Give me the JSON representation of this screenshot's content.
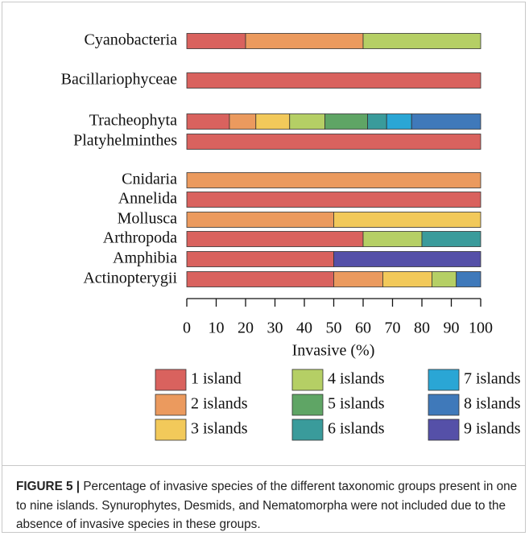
{
  "chart_data": {
    "type": "stacked-barh",
    "xlabel": "Invasive (%)",
    "categories": [
      "Cyanobacteria",
      "Bacillariophyceae",
      "Tracheophyta",
      "Platyhelminthes",
      "Cnidaria",
      "Annelida",
      "Mollusca",
      "Arthropoda",
      "Amphibia",
      "Actinopterygii"
    ],
    "series": [
      {
        "name": "1 island",
        "color": "#d9625e",
        "values": [
          20,
          100,
          14.5,
          100,
          0,
          100,
          0,
          60,
          50,
          50
        ]
      },
      {
        "name": "2 islands",
        "color": "#eb9a5e",
        "values": [
          40,
          0,
          9,
          0,
          100,
          0,
          50,
          0,
          0,
          16.7
        ]
      },
      {
        "name": "3 islands",
        "color": "#f2c95a",
        "values": [
          0,
          0,
          11.5,
          0,
          0,
          0,
          50,
          0,
          0,
          16.7
        ]
      },
      {
        "name": "4 islands",
        "color": "#b5cf65",
        "values": [
          40,
          0,
          12,
          0,
          0,
          0,
          0,
          20,
          0,
          8.3
        ]
      },
      {
        "name": "5 islands",
        "color": "#5fa565",
        "values": [
          0,
          0,
          14.5,
          0,
          0,
          0,
          0,
          0,
          0,
          0
        ]
      },
      {
        "name": "6 islands",
        "color": "#3a9b9b",
        "values": [
          0,
          0,
          6.5,
          0,
          0,
          0,
          0,
          20,
          0,
          0
        ]
      },
      {
        "name": "7 islands",
        "color": "#2aa6d5",
        "values": [
          0,
          0,
          8.5,
          0,
          0,
          0,
          0,
          0,
          0,
          0
        ]
      },
      {
        "name": "8 islands",
        "color": "#3f79ba",
        "values": [
          0,
          0,
          23.5,
          0,
          0,
          0,
          0,
          0,
          0,
          8.3
        ]
      },
      {
        "name": "9 islands",
        "color": "#5550a8",
        "values": [
          0,
          0,
          0,
          0,
          0,
          0,
          0,
          0,
          50,
          0
        ]
      }
    ],
    "xlim": [
      0,
      100
    ],
    "xticks": [
      0,
      10,
      20,
      30,
      40,
      50,
      60,
      70,
      80,
      90,
      100
    ]
  },
  "caption": {
    "label": "FIGURE 5 |",
    "text": "Percentage of invasive species of the different taxonomic groups present in one to nine islands. Synurophytes, Desmids, and Nematomorpha were not included due to the absence of invasive species in these groups."
  }
}
